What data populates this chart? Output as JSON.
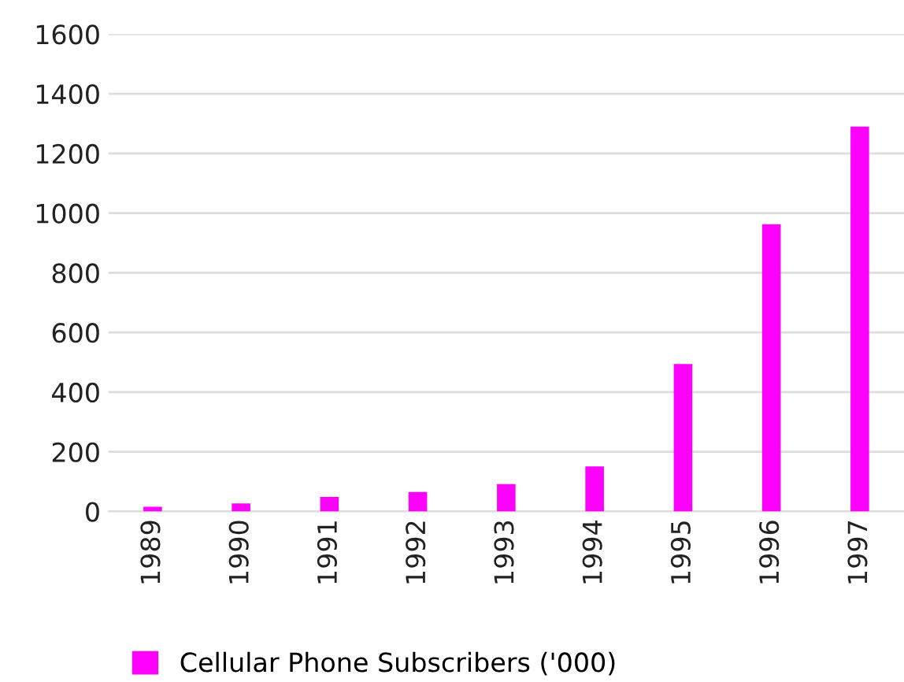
{
  "chart_data": {
    "type": "bar",
    "categories": [
      "1989",
      "1990",
      "1991",
      "1992",
      "1993",
      "1994",
      "1995",
      "1996",
      "1997"
    ],
    "series": [
      {
        "name": "Cellular Phone Subscribers ('000)",
        "color": "#ff00ff",
        "values": [
          16,
          27,
          49,
          65,
          92,
          151,
          494,
          963,
          1290
        ]
      }
    ],
    "ylim": [
      0,
      1600
    ],
    "yticks": [
      0,
      200,
      400,
      600,
      800,
      1000,
      1200,
      1400,
      1600
    ],
    "grid": "y",
    "legend": "bottom"
  }
}
